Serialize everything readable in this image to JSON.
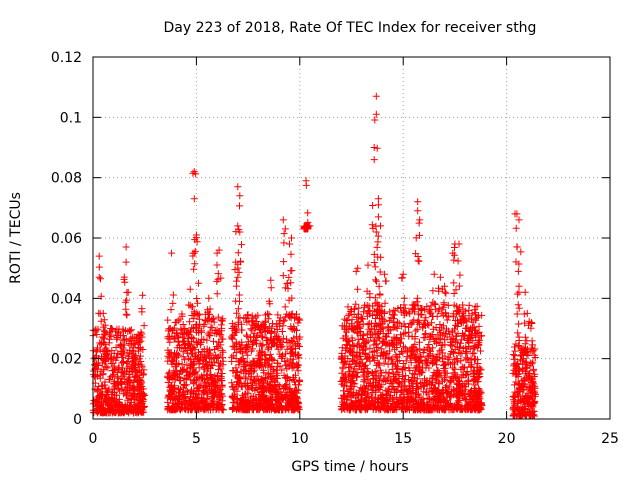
{
  "chart_data": {
    "type": "scatter",
    "title": "Day 223 of 2018, Rate Of TEC Index for receiver sthg",
    "xlabel": "GPS time / hours",
    "ylabel": "ROTI / TECUs",
    "xlim": [
      0,
      25
    ],
    "ylim": [
      0,
      0.12
    ],
    "x_ticks": [
      0,
      5,
      10,
      15,
      20,
      25
    ],
    "x_tick_labels": [
      "0",
      "5",
      "10",
      "15",
      "20",
      "25"
    ],
    "y_ticks": [
      0,
      0.02,
      0.04,
      0.06,
      0.08,
      0.1,
      0.12
    ],
    "y_tick_labels": [
      "0",
      "0.02",
      "0.04",
      "0.06",
      "0.08",
      "0.1",
      "0.12"
    ],
    "grid": true,
    "marker": "+",
    "color": "#ff0000",
    "series": [
      {
        "name": "ROTI",
        "clusters": [
          {
            "x_range": [
              0.0,
              2.5
            ],
            "y_base": [
              0.002,
              0.03
            ],
            "peaks": [
              [
                0.3,
                0.054
              ],
              [
                0.3,
                0.047
              ],
              [
                1.6,
                0.057
              ],
              [
                1.6,
                0.052
              ],
              [
                0.5,
                0.035
              ],
              [
                1.7,
                0.042
              ],
              [
                2.4,
                0.041
              ],
              [
                0.9,
                0.03
              ]
            ]
          },
          {
            "x_range": [
              3.6,
              6.3
            ],
            "y_base": [
              0.003,
              0.035
            ],
            "peaks": [
              [
                4.9,
                0.082
              ],
              [
                4.9,
                0.073
              ],
              [
                5.0,
                0.061
              ],
              [
                3.8,
                0.055
              ],
              [
                4.9,
                0.055
              ],
              [
                5.1,
                0.045
              ],
              [
                6.1,
                0.056
              ],
              [
                6.0,
                0.055
              ],
              [
                4.7,
                0.043
              ],
              [
                5.6,
                0.04
              ]
            ]
          },
          {
            "x_range": [
              6.7,
              10.0
            ],
            "y_base": [
              0.003,
              0.035
            ],
            "peaks": [
              [
                7.0,
                0.077
              ],
              [
                7.1,
                0.074
              ],
              [
                7.0,
                0.064
              ],
              [
                7.1,
                0.062
              ],
              [
                6.9,
                0.052
              ],
              [
                9.2,
                0.066
              ],
              [
                9.3,
                0.063
              ],
              [
                9.6,
                0.06
              ],
              [
                9.5,
                0.058
              ],
              [
                8.6,
                0.046
              ],
              [
                7.0,
                0.047
              ],
              [
                9.4,
                0.045
              ]
            ]
          },
          {
            "x_range": [
              10.2,
              10.4
            ],
            "y_base": [
              0.063,
              0.064
            ],
            "peaks": [
              [
                10.3,
                0.079
              ],
              [
                10.4,
                0.064
              ]
            ]
          },
          {
            "x_range": [
              12.0,
              18.8
            ],
            "y_base": [
              0.003,
              0.038
            ],
            "peaks": [
              [
                13.7,
                0.107
              ],
              [
                13.7,
                0.101
              ],
              [
                13.6,
                0.09
              ],
              [
                13.6,
                0.086
              ],
              [
                13.8,
                0.073
              ],
              [
                13.8,
                0.067
              ],
              [
                13.9,
                0.064
              ],
              [
                13.7,
                0.062
              ],
              [
                15.7,
                0.072
              ],
              [
                15.7,
                0.069
              ],
              [
                15.8,
                0.066
              ],
              [
                17.5,
                0.058
              ],
              [
                17.7,
                0.058
              ],
              [
                17.4,
                0.055
              ],
              [
                12.8,
                0.05
              ],
              [
                13.3,
                0.051
              ],
              [
                14.1,
                0.048
              ],
              [
                15.0,
                0.048
              ],
              [
                16.5,
                0.048
              ],
              [
                17.0,
                0.044
              ],
              [
                16.8,
                0.047
              ]
            ]
          },
          {
            "x_range": [
              20.3,
              21.4
            ],
            "y_base": [
              0.001,
              0.025
            ],
            "peaks": [
              [
                20.5,
                0.068
              ],
              [
                20.6,
                0.066
              ],
              [
                20.5,
                0.057
              ],
              [
                20.6,
                0.044
              ],
              [
                20.6,
                0.042
              ],
              [
                20.9,
                0.042
              ],
              [
                21.0,
                0.035
              ],
              [
                21.2,
                0.032
              ]
            ]
          }
        ]
      }
    ]
  }
}
